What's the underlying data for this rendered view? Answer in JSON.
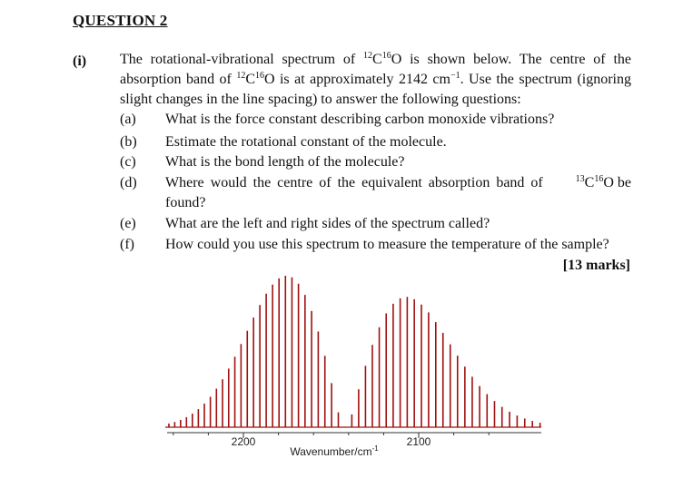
{
  "heading": "QUESTION 2",
  "part_label": "(i)",
  "intro": {
    "p1": "The rotational-vibrational spectrum of ",
    "iso1_mass_c": "12",
    "iso1_c": "C",
    "iso1_mass_o": "16",
    "iso1_o": "O",
    "p2": " is shown below.  The centre of the absorption band of ",
    "p3": " is at approximately 2142 cm",
    "unit_exp": "−1",
    "p4": ".  Use the spectrum (ignoring slight changes in the line spacing) to answer the following questions:"
  },
  "items": [
    {
      "label": "(a)",
      "text": "What is the force constant describing carbon monoxide vibrations?"
    },
    {
      "label": "(b)",
      "text": "Estimate the rotational constant of the molecule."
    },
    {
      "label": "(c)",
      "text": "What is the bond length of the molecule?"
    },
    {
      "label": "(d)",
      "text_pre": "Where would the centre of the equivalent absorption band of ",
      "iso_mass_c": "13",
      "iso_c": "C",
      "iso_mass_o": "16",
      "iso_o": "O",
      "text_post": " be",
      "text_cont": "found?"
    },
    {
      "label": "(e)",
      "text": "What are the left and right sides of the spectrum called?"
    },
    {
      "label": "(f)",
      "text": "How could you use this spectrum to measure the temperature of the sample?"
    }
  ],
  "marks": "[13 marks]",
  "chart_data": {
    "type": "line",
    "xlabel": "Wavenumber/cm",
    "xlabel_exp": "-1",
    "tick_labels": [
      "2200",
      "2100"
    ],
    "x_range": [
      2250,
      2050
    ],
    "reversed_x_axis": true,
    "band_centre": 2142,
    "line_color": "#a01010",
    "branches": [
      {
        "centre": 2167,
        "lines": 34
      },
      {
        "centre": 2118,
        "lines": 34
      }
    ]
  }
}
